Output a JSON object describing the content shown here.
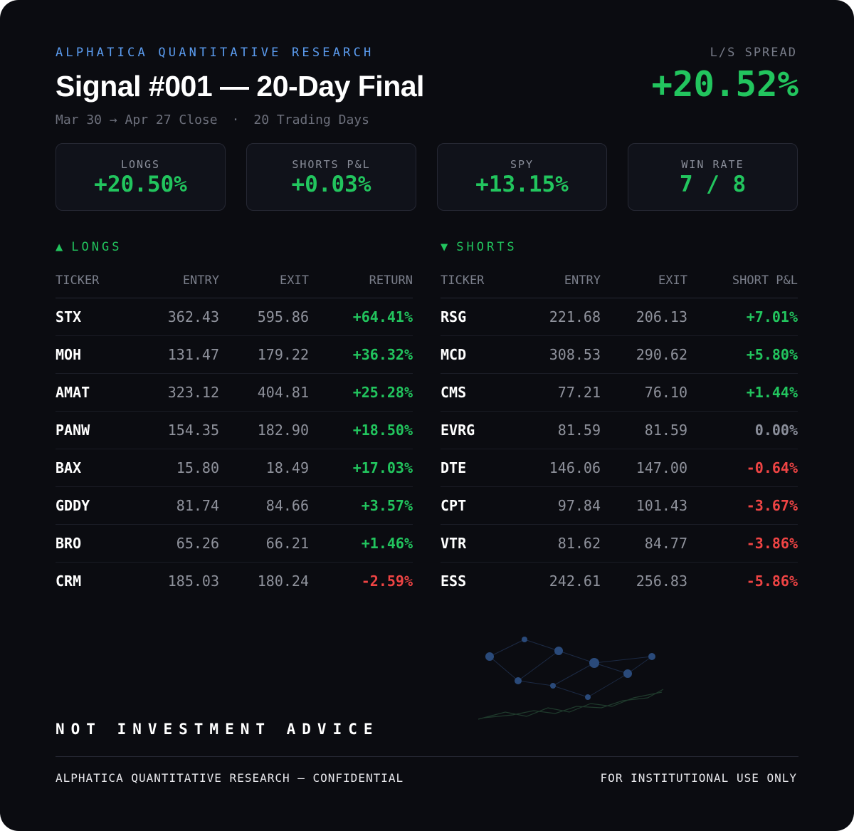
{
  "header": {
    "brand": "ALPHATICA QUANTITATIVE RESEARCH",
    "title": "Signal #001 — 20-Day Final",
    "date_range": "Mar 30 → Apr 27 Close",
    "separator": "·",
    "trading_days": "20 Trading Days",
    "spread_label": "L/S SPREAD",
    "spread_value": "+20.52%"
  },
  "stats": [
    {
      "label": "LONGS",
      "value": "+20.50%"
    },
    {
      "label": "SHORTS P&L",
      "value": "+0.03%"
    },
    {
      "label": "SPY",
      "value": "+13.15%"
    },
    {
      "label": "WIN RATE",
      "value": "7 / 8"
    }
  ],
  "longs": {
    "arrow": "▲",
    "title": "LONGS",
    "columns": [
      "TICKER",
      "ENTRY",
      "EXIT",
      "RETURN"
    ],
    "rows": [
      {
        "ticker": "STX",
        "entry": "362.43",
        "exit": "595.86",
        "ret": "+64.41%",
        "sign": "pos"
      },
      {
        "ticker": "MOH",
        "entry": "131.47",
        "exit": "179.22",
        "ret": "+36.32%",
        "sign": "pos"
      },
      {
        "ticker": "AMAT",
        "entry": "323.12",
        "exit": "404.81",
        "ret": "+25.28%",
        "sign": "pos"
      },
      {
        "ticker": "PANW",
        "entry": "154.35",
        "exit": "182.90",
        "ret": "+18.50%",
        "sign": "pos"
      },
      {
        "ticker": "BAX",
        "entry": "15.80",
        "exit": "18.49",
        "ret": "+17.03%",
        "sign": "pos"
      },
      {
        "ticker": "GDDY",
        "entry": "81.74",
        "exit": "84.66",
        "ret": "+3.57%",
        "sign": "pos"
      },
      {
        "ticker": "BRO",
        "entry": "65.26",
        "exit": "66.21",
        "ret": "+1.46%",
        "sign": "pos"
      },
      {
        "ticker": "CRM",
        "entry": "185.03",
        "exit": "180.24",
        "ret": "-2.59%",
        "sign": "neg"
      }
    ]
  },
  "shorts": {
    "arrow": "▼",
    "title": "SHORTS",
    "columns": [
      "TICKER",
      "ENTRY",
      "EXIT",
      "SHORT P&L"
    ],
    "rows": [
      {
        "ticker": "RSG",
        "entry": "221.68",
        "exit": "206.13",
        "ret": "+7.01%",
        "sign": "pos"
      },
      {
        "ticker": "MCD",
        "entry": "308.53",
        "exit": "290.62",
        "ret": "+5.80%",
        "sign": "pos"
      },
      {
        "ticker": "CMS",
        "entry": "77.21",
        "exit": "76.10",
        "ret": "+1.44%",
        "sign": "pos"
      },
      {
        "ticker": "EVRG",
        "entry": "81.59",
        "exit": "81.59",
        "ret": "0.00%",
        "sign": "zero"
      },
      {
        "ticker": "DTE",
        "entry": "146.06",
        "exit": "147.00",
        "ret": "-0.64%",
        "sign": "neg"
      },
      {
        "ticker": "CPT",
        "entry": "97.84",
        "exit": "101.43",
        "ret": "-3.67%",
        "sign": "neg"
      },
      {
        "ticker": "VTR",
        "entry": "81.62",
        "exit": "84.77",
        "ret": "-3.86%",
        "sign": "neg"
      },
      {
        "ticker": "ESS",
        "entry": "242.61",
        "exit": "256.83",
        "ret": "-5.86%",
        "sign": "neg"
      }
    ]
  },
  "decoration": {
    "icon": "network-graph-icon"
  },
  "footer": {
    "disclaimer": "NOT INVESTMENT ADVICE",
    "left": "ALPHATICA QUANTITATIVE RESEARCH — CONFIDENTIAL",
    "right": "FOR INSTITUTIONAL USE ONLY"
  },
  "colors": {
    "positive": "#22c55e",
    "negative": "#ef4444",
    "accent": "#5b9cf0",
    "background": "#0b0c11"
  }
}
